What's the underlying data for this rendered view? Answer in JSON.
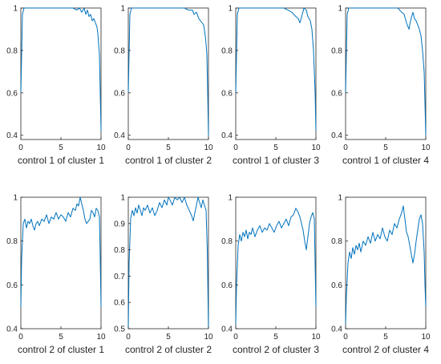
{
  "figure": {
    "series_color": "#0072BD"
  },
  "chart_data": [
    {
      "type": "line",
      "xlabel": "control 1 of cluster 1",
      "xlim": [
        0,
        10
      ],
      "ylim": [
        0.38,
        1
      ],
      "xticks": [
        0,
        5,
        10
      ],
      "yticks": [
        0.4,
        0.6,
        0.8,
        1
      ],
      "x": [
        0,
        0.2,
        0.4,
        1,
        2,
        3,
        4,
        5,
        6,
        6.5,
        7,
        7.3,
        7.6,
        7.9,
        8.1,
        8.3,
        8.5,
        8.7,
        8.9,
        9.1,
        9.3,
        9.5,
        9.6,
        9.7,
        9.8,
        9.9,
        10
      ],
      "y": [
        0.6,
        0.97,
        1,
        1,
        1,
        1,
        1,
        1,
        1,
        1,
        0.99,
        1,
        0.98,
        1,
        0.97,
        0.99,
        0.96,
        0.97,
        0.94,
        0.95,
        0.93,
        0.91,
        0.88,
        0.83,
        0.78,
        0.6,
        0.42
      ]
    },
    {
      "type": "line",
      "xlabel": "control 1 of cluster 2",
      "xlim": [
        0,
        10
      ],
      "ylim": [
        0.38,
        1
      ],
      "xticks": [
        0,
        5,
        10
      ],
      "yticks": [
        0.4,
        0.6,
        0.8,
        1
      ],
      "x": [
        0,
        0.2,
        0.4,
        1,
        2,
        3,
        4,
        5,
        6,
        7,
        7.5,
        8,
        8.2,
        8.5,
        8.8,
        9,
        9.2,
        9.4,
        9.6,
        9.7,
        9.8,
        9.9,
        10
      ],
      "y": [
        0.6,
        0.97,
        1,
        1,
        1,
        1,
        1,
        1,
        1,
        1,
        0.99,
        0.99,
        0.97,
        0.98,
        0.95,
        0.94,
        0.93,
        0.92,
        0.87,
        0.83,
        0.78,
        0.6,
        0.4
      ]
    },
    {
      "type": "line",
      "xlabel": "control 1 of cluster 3",
      "xlim": [
        0,
        10
      ],
      "ylim": [
        0.38,
        1
      ],
      "xticks": [
        0,
        5,
        10
      ],
      "yticks": [
        0.4,
        0.6,
        0.8,
        1
      ],
      "x": [
        0,
        0.2,
        0.4,
        1,
        2,
        3,
        4,
        5,
        6,
        6.5,
        7,
        7.5,
        7.8,
        8,
        8.3,
        8.5,
        8.8,
        9,
        9.3,
        9.5,
        9.7,
        9.9,
        10
      ],
      "y": [
        0.6,
        0.97,
        1,
        1,
        1,
        1,
        1,
        1,
        1,
        0.99,
        0.98,
        0.96,
        0.95,
        0.93,
        0.97,
        1,
        0.99,
        0.96,
        0.94,
        0.9,
        0.8,
        0.6,
        0.42
      ]
    },
    {
      "type": "line",
      "xlabel": "control 1 of cluster 4",
      "xlim": [
        0,
        10
      ],
      "ylim": [
        0.38,
        1
      ],
      "xticks": [
        0,
        5,
        10
      ],
      "yticks": [
        0.4,
        0.6,
        0.8,
        1
      ],
      "x": [
        0,
        0.2,
        0.4,
        1,
        2,
        3,
        4,
        5,
        6,
        6.5,
        7,
        7.3,
        7.6,
        7.9,
        8.1,
        8.4,
        8.6,
        8.8,
        9,
        9.2,
        9.4,
        9.6,
        9.8,
        9.9,
        10
      ],
      "y": [
        0.6,
        0.97,
        1,
        1,
        1,
        1,
        1,
        1,
        1,
        1,
        0.98,
        0.97,
        0.93,
        0.9,
        0.94,
        0.98,
        0.95,
        0.94,
        0.92,
        0.9,
        0.87,
        0.8,
        0.7,
        0.55,
        0.4
      ]
    },
    {
      "type": "line",
      "xlabel": "control 2 of cluster 1",
      "xlim": [
        0,
        10
      ],
      "ylim": [
        0.4,
        1
      ],
      "xticks": [
        0,
        5,
        10
      ],
      "yticks": [
        0.4,
        0.6,
        0.8,
        1
      ],
      "x": [
        0,
        0.1,
        0.3,
        0.5,
        0.7,
        0.9,
        1.1,
        1.3,
        1.5,
        1.7,
        1.9,
        2.1,
        2.3,
        2.6,
        2.9,
        3.2,
        3.5,
        3.8,
        4.1,
        4.4,
        4.7,
        5,
        5.3,
        5.6,
        5.9,
        6.2,
        6.5,
        6.8,
        7,
        7.2,
        7.4,
        7.6,
        7.8,
        8,
        8.2,
        8.4,
        8.6,
        8.8,
        9,
        9.2,
        9.4,
        9.6,
        9.8,
        9.9,
        10
      ],
      "y": [
        0.5,
        0.72,
        0.88,
        0.9,
        0.86,
        0.89,
        0.88,
        0.9,
        0.87,
        0.85,
        0.88,
        0.89,
        0.87,
        0.9,
        0.89,
        0.92,
        0.88,
        0.91,
        0.9,
        0.93,
        0.9,
        0.92,
        0.91,
        0.89,
        0.93,
        0.91,
        0.95,
        0.94,
        0.97,
        0.96,
        1,
        0.97,
        0.94,
        0.9,
        0.88,
        0.89,
        0.9,
        0.94,
        0.93,
        0.91,
        0.95,
        0.94,
        0.91,
        0.72,
        0.5
      ]
    },
    {
      "type": "line",
      "xlabel": "control 2 of cluster 2",
      "xlim": [
        0,
        10
      ],
      "ylim": [
        0.5,
        1
      ],
      "xticks": [
        0,
        5,
        10
      ],
      "yticks": [
        0.5,
        0.6,
        0.7,
        0.8,
        0.9,
        1
      ],
      "x": [
        0,
        0.1,
        0.3,
        0.5,
        0.7,
        0.9,
        1.1,
        1.3,
        1.5,
        1.7,
        1.9,
        2.1,
        2.4,
        2.7,
        3,
        3.3,
        3.6,
        3.9,
        4.2,
        4.5,
        4.8,
        5,
        5.2,
        5.5,
        5.8,
        6.1,
        6.4,
        6.7,
        7,
        7.3,
        7.6,
        7.9,
        8.1,
        8.3,
        8.5,
        8.7,
        8.9,
        9.1,
        9.3,
        9.5,
        9.7,
        9.85,
        10
      ],
      "y": [
        0.5,
        0.75,
        0.92,
        0.95,
        0.93,
        0.96,
        0.94,
        0.97,
        0.95,
        0.93,
        0.96,
        0.95,
        0.97,
        0.94,
        0.96,
        0.93,
        0.95,
        0.98,
        0.96,
        0.99,
        0.97,
        1,
        0.99,
        0.97,
        1,
        0.99,
        1,
        0.98,
        1,
        0.97,
        0.95,
        0.93,
        0.91,
        0.94,
        0.97,
        1,
        0.98,
        0.96,
        0.99,
        0.97,
        0.95,
        0.8,
        0.5
      ]
    },
    {
      "type": "line",
      "xlabel": "control 2 of cluster 3",
      "xlim": [
        0,
        10
      ],
      "ylim": [
        0.4,
        1
      ],
      "xticks": [
        0,
        5,
        10
      ],
      "yticks": [
        0.4,
        0.6,
        0.8,
        1
      ],
      "x": [
        0,
        0.1,
        0.3,
        0.5,
        0.7,
        0.9,
        1.1,
        1.3,
        1.5,
        1.7,
        1.9,
        2.1,
        2.4,
        2.7,
        3,
        3.3,
        3.6,
        3.9,
        4.2,
        4.5,
        4.8,
        5.1,
        5.4,
        5.7,
        6,
        6.3,
        6.6,
        6.9,
        7.2,
        7.5,
        7.8,
        8,
        8.2,
        8.4,
        8.6,
        8.8,
        9,
        9.2,
        9.4,
        9.6,
        9.8,
        9.9,
        10
      ],
      "y": [
        0.42,
        0.6,
        0.78,
        0.83,
        0.8,
        0.84,
        0.82,
        0.85,
        0.81,
        0.84,
        0.83,
        0.86,
        0.82,
        0.85,
        0.87,
        0.84,
        0.86,
        0.85,
        0.88,
        0.86,
        0.84,
        0.87,
        0.89,
        0.86,
        0.88,
        0.9,
        0.87,
        0.91,
        0.92,
        0.95,
        0.93,
        0.91,
        0.88,
        0.85,
        0.8,
        0.76,
        0.82,
        0.88,
        0.91,
        0.93,
        0.9,
        0.7,
        0.5
      ]
    },
    {
      "type": "line",
      "xlabel": "control 2 of cluster 4",
      "xlim": [
        0,
        10
      ],
      "ylim": [
        0.4,
        1
      ],
      "xticks": [
        0,
        5,
        10
      ],
      "yticks": [
        0.4,
        0.6,
        0.8,
        1
      ],
      "x": [
        0,
        0.1,
        0.3,
        0.5,
        0.7,
        0.9,
        1.1,
        1.3,
        1.5,
        1.7,
        1.9,
        2.2,
        2.5,
        2.8,
        3.1,
        3.4,
        3.7,
        4,
        4.3,
        4.6,
        4.9,
        5.2,
        5.5,
        5.8,
        6.1,
        6.4,
        6.7,
        7,
        7.2,
        7.4,
        7.6,
        7.8,
        8,
        8.2,
        8.4,
        8.6,
        8.8,
        9,
        9.2,
        9.4,
        9.6,
        9.8,
        9.9,
        10
      ],
      "y": [
        0.42,
        0.55,
        0.7,
        0.75,
        0.72,
        0.77,
        0.74,
        0.78,
        0.76,
        0.79,
        0.75,
        0.8,
        0.78,
        0.82,
        0.79,
        0.84,
        0.8,
        0.83,
        0.81,
        0.86,
        0.82,
        0.8,
        0.85,
        0.83,
        0.88,
        0.86,
        0.9,
        0.93,
        0.96,
        0.9,
        0.84,
        0.82,
        0.78,
        0.74,
        0.7,
        0.74,
        0.8,
        0.85,
        0.9,
        0.92,
        0.88,
        0.75,
        0.6,
        0.5
      ]
    }
  ]
}
